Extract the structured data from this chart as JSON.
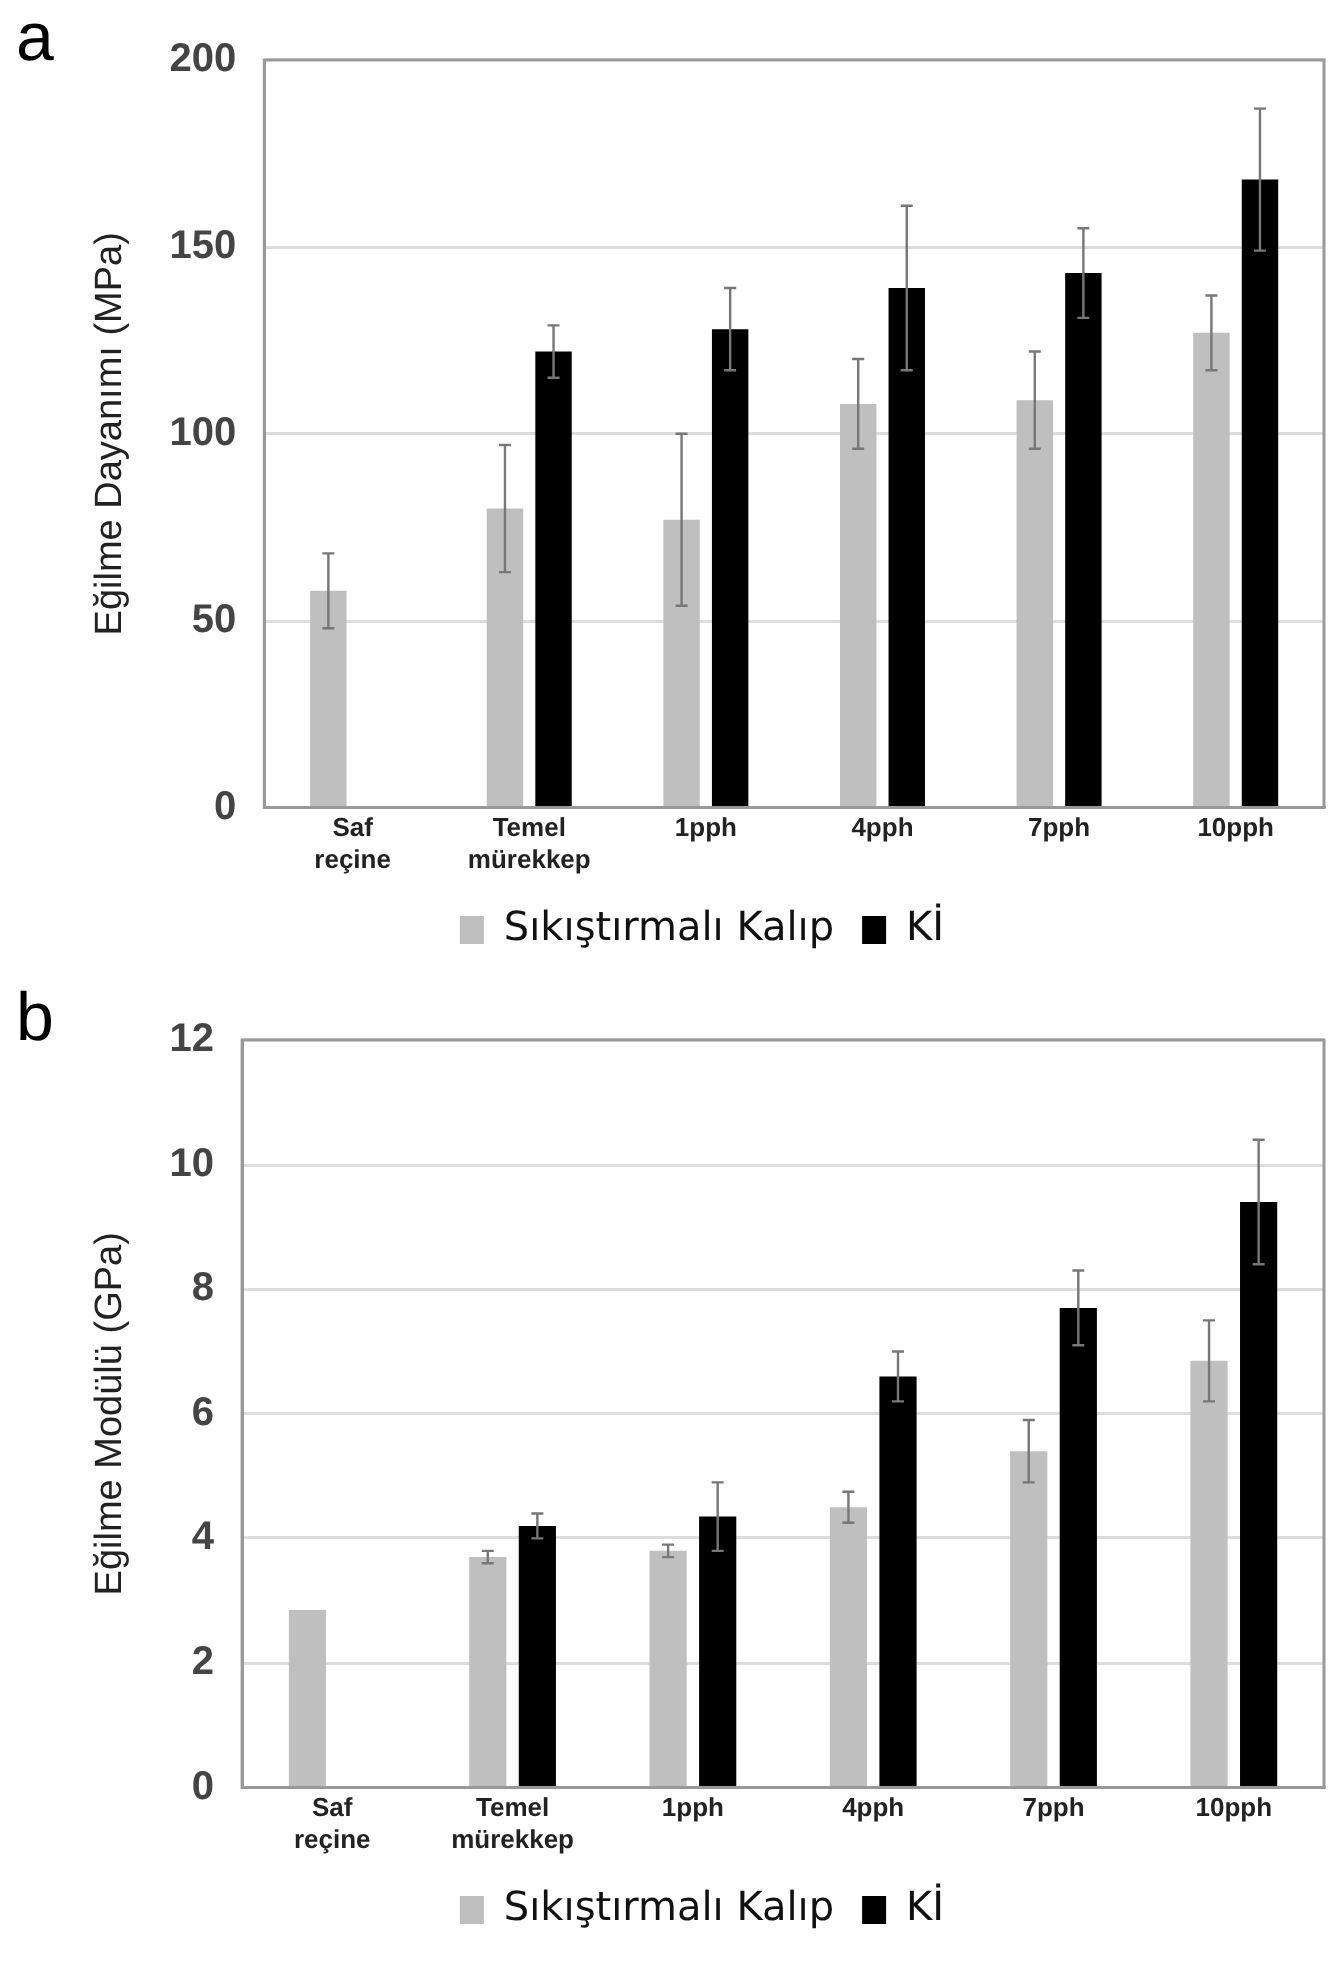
{
  "chart_data": [
    {
      "type": "bar",
      "title": "a",
      "ylabel": "Eğilme Dayanımı (MPa)",
      "categories": [
        "Saf reçine",
        "Temel mürekkep",
        "1pph",
        "4pph",
        "7pph",
        "10pph"
      ],
      "series": [
        {
          "name": "Sıkıştırmalı Kalıp",
          "color": "#bfbfbf",
          "values": [
            58,
            80,
            77,
            108,
            109,
            127
          ],
          "errors": [
            10,
            17,
            23,
            12,
            13,
            10
          ]
        },
        {
          "name": "Kİ",
          "color": "#000000",
          "values": [
            null,
            122,
            128,
            139,
            143,
            168
          ],
          "errors": [
            null,
            7,
            11,
            22,
            12,
            19
          ]
        }
      ],
      "ylim": [
        0,
        200
      ],
      "yticks": [
        0,
        50,
        100,
        150,
        200
      ],
      "grid": "y",
      "legend": "bottom"
    },
    {
      "type": "bar",
      "title": "b",
      "ylabel": "Eğilme Modülü (GPa)",
      "categories": [
        "Saf reçine",
        "Temel mürekkep",
        "1pph",
        "4pph",
        "7pph",
        "10pph"
      ],
      "series": [
        {
          "name": "Sıkıştırmalı Kalıp",
          "color": "#bfbfbf",
          "values": [
            2.85,
            3.7,
            3.8,
            4.5,
            5.4,
            6.85
          ],
          "errors": [
            null,
            0.1,
            0.1,
            0.25,
            0.5,
            0.65
          ]
        },
        {
          "name": "Kİ",
          "color": "#000000",
          "values": [
            null,
            4.2,
            4.35,
            6.6,
            7.7,
            9.4
          ],
          "errors": [
            null,
            0.2,
            0.55,
            0.4,
            0.6,
            1.0
          ]
        }
      ],
      "ylim": [
        0,
        12
      ],
      "yticks": [
        0,
        2,
        4,
        6,
        8,
        10,
        12
      ],
      "grid": "y",
      "legend": "bottom"
    }
  ]
}
